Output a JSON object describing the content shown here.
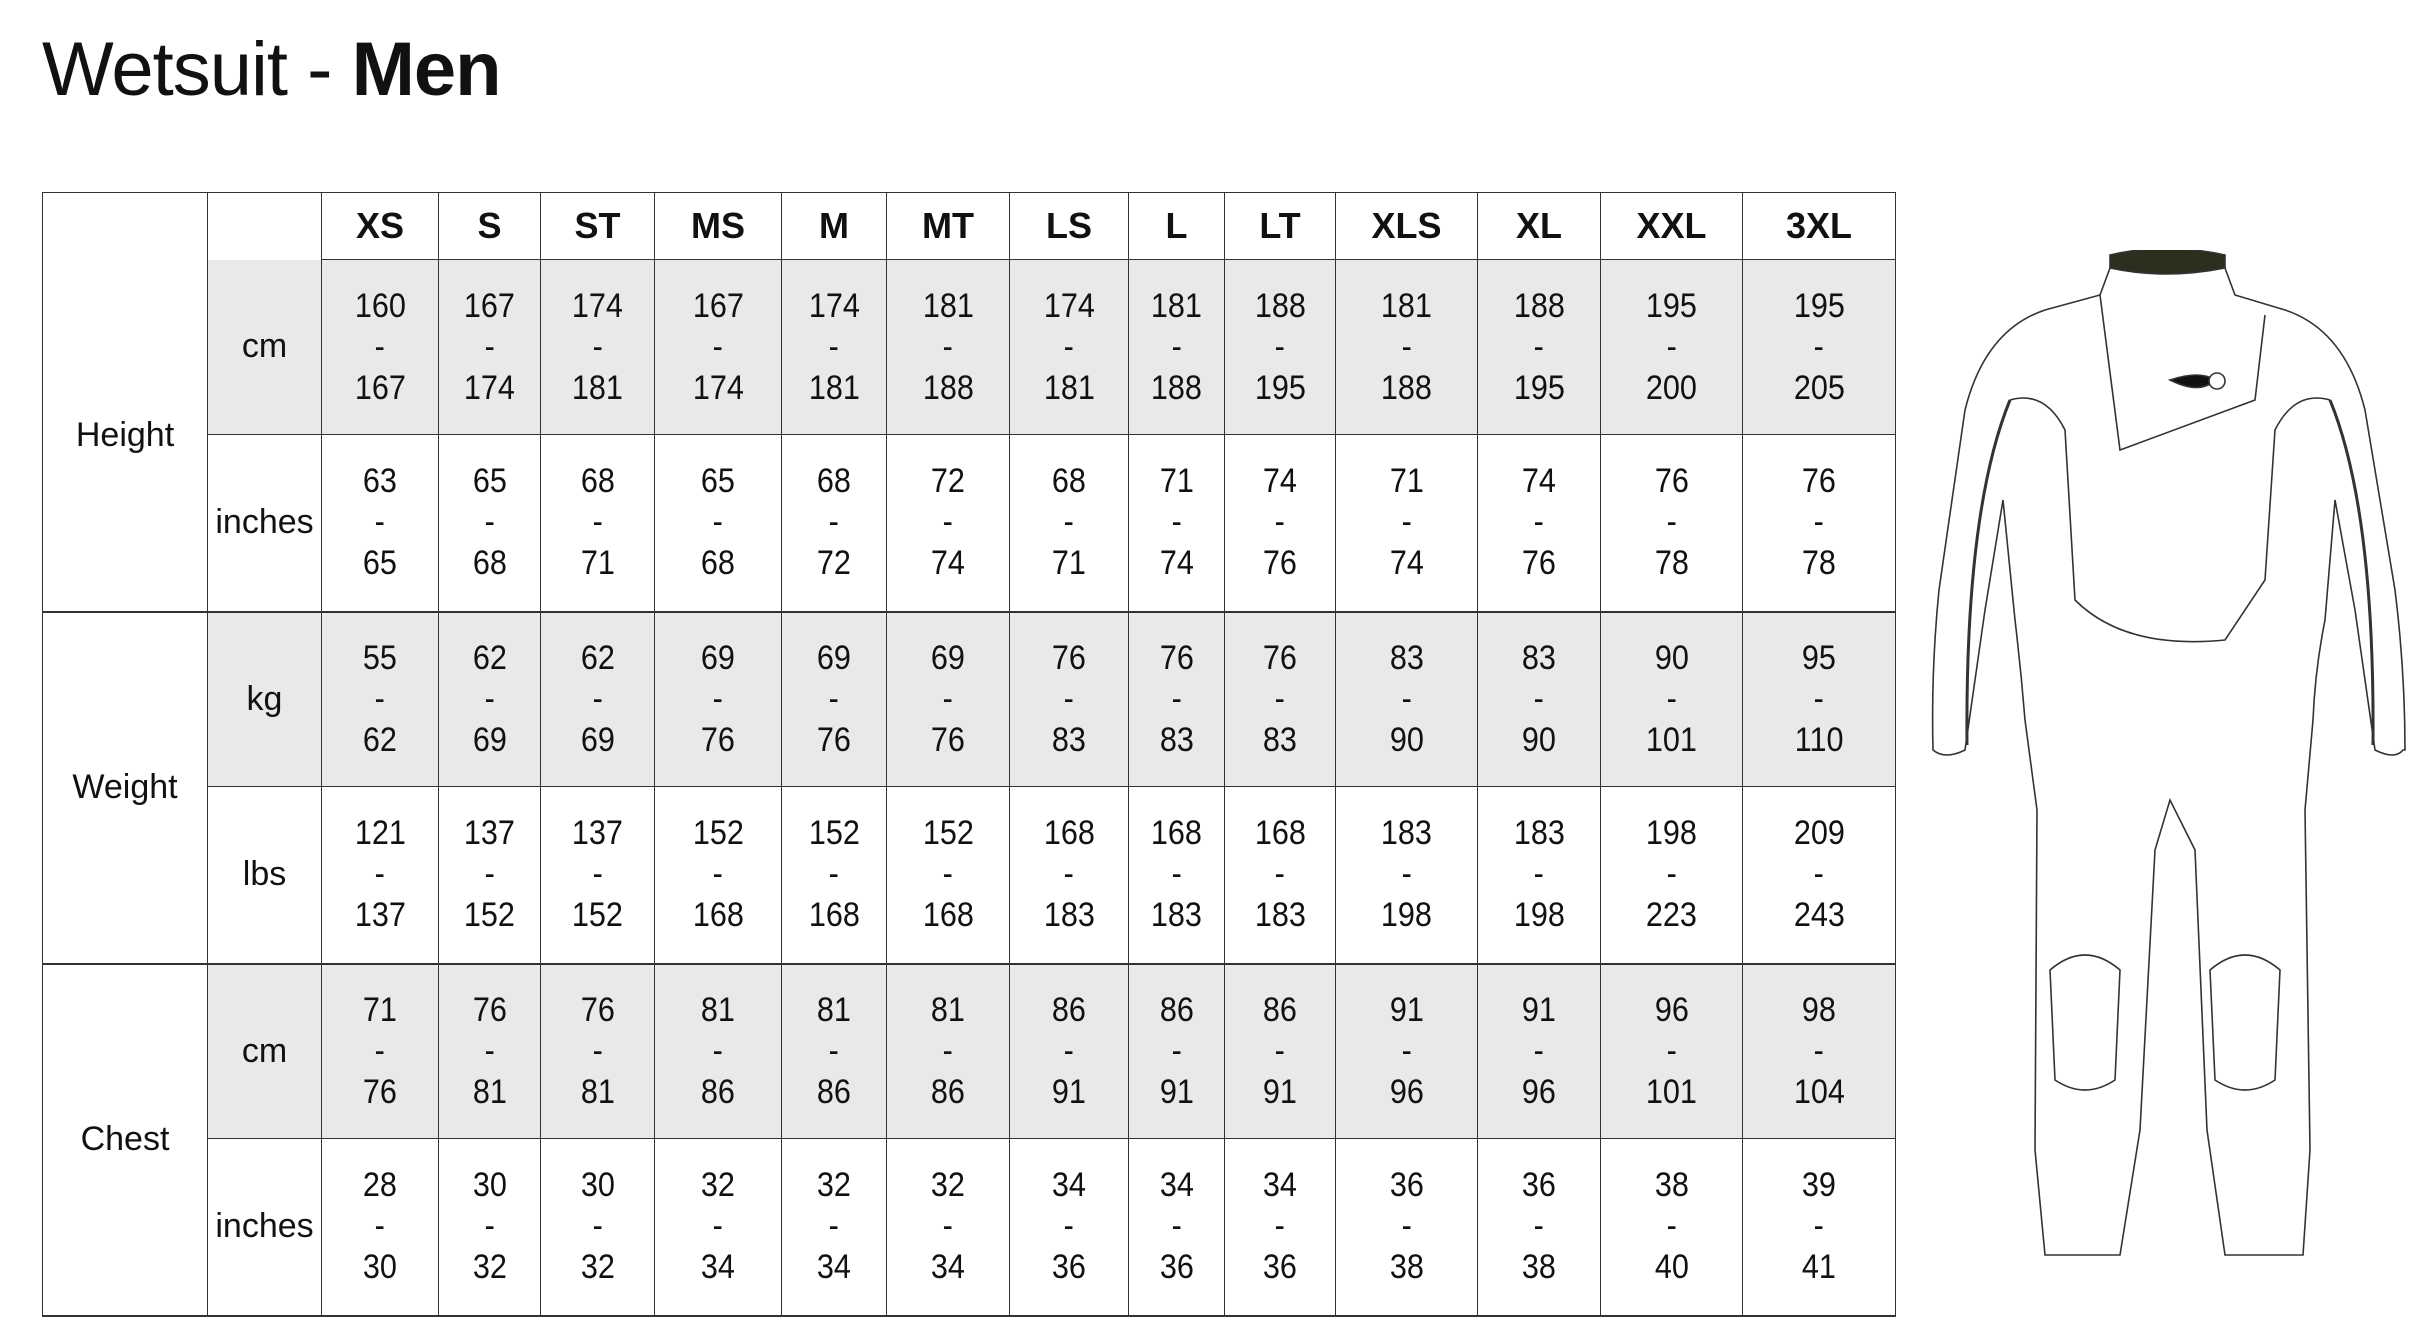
{
  "title": {
    "prefix": "Wetsuit - ",
    "bold": "Men"
  },
  "sizes": [
    "XS",
    "S",
    "ST",
    "MS",
    "M",
    "MT",
    "LS",
    "L",
    "LT",
    "XLS",
    "XL",
    "XXL",
    "3XL"
  ],
  "groups": [
    {
      "label": "Height",
      "rows": [
        {
          "unit": "cm",
          "values": [
            [
              "160",
              "167"
            ],
            [
              "167",
              "174"
            ],
            [
              "174",
              "181"
            ],
            [
              "167",
              "174"
            ],
            [
              "174",
              "181"
            ],
            [
              "181",
              "188"
            ],
            [
              "174",
              "181"
            ],
            [
              "181",
              "188"
            ],
            [
              "188",
              "195"
            ],
            [
              "181",
              "188"
            ],
            [
              "188",
              "195"
            ],
            [
              "195",
              "200"
            ],
            [
              "195",
              "205"
            ]
          ]
        },
        {
          "unit": "inches",
          "values": [
            [
              "63",
              "65"
            ],
            [
              "65",
              "68"
            ],
            [
              "68",
              "71"
            ],
            [
              "65",
              "68"
            ],
            [
              "68",
              "72"
            ],
            [
              "72",
              "74"
            ],
            [
              "68",
              "71"
            ],
            [
              "71",
              "74"
            ],
            [
              "74",
              "76"
            ],
            [
              "71",
              "74"
            ],
            [
              "74",
              "76"
            ],
            [
              "76",
              "78"
            ],
            [
              "76",
              "78"
            ]
          ]
        }
      ]
    },
    {
      "label": "Weight",
      "rows": [
        {
          "unit": "kg",
          "values": [
            [
              "55",
              "62"
            ],
            [
              "62",
              "69"
            ],
            [
              "62",
              "69"
            ],
            [
              "69",
              "76"
            ],
            [
              "69",
              "76"
            ],
            [
              "69",
              "76"
            ],
            [
              "76",
              "83"
            ],
            [
              "76",
              "83"
            ],
            [
              "76",
              "83"
            ],
            [
              "83",
              "90"
            ],
            [
              "83",
              "90"
            ],
            [
              "90",
              "101"
            ],
            [
              "95",
              "110"
            ]
          ]
        },
        {
          "unit": "lbs",
          "values": [
            [
              "121",
              "137"
            ],
            [
              "137",
              "152"
            ],
            [
              "137",
              "152"
            ],
            [
              "152",
              "168"
            ],
            [
              "152",
              "168"
            ],
            [
              "152",
              "168"
            ],
            [
              "168",
              "183"
            ],
            [
              "168",
              "183"
            ],
            [
              "168",
              "183"
            ],
            [
              "183",
              "198"
            ],
            [
              "183",
              "198"
            ],
            [
              "198",
              "223"
            ],
            [
              "209",
              "243"
            ]
          ]
        }
      ]
    },
    {
      "label": "Chest",
      "rows": [
        {
          "unit": "cm",
          "values": [
            [
              "71",
              "76"
            ],
            [
              "76",
              "81"
            ],
            [
              "76",
              "81"
            ],
            [
              "81",
              "86"
            ],
            [
              "81",
              "86"
            ],
            [
              "81",
              "86"
            ],
            [
              "86",
              "91"
            ],
            [
              "86",
              "91"
            ],
            [
              "86",
              "91"
            ],
            [
              "91",
              "96"
            ],
            [
              "91",
              "96"
            ],
            [
              "96",
              "101"
            ],
            [
              "98",
              "104"
            ]
          ]
        },
        {
          "unit": "inches",
          "values": [
            [
              "28",
              "30"
            ],
            [
              "30",
              "32"
            ],
            [
              "30",
              "32"
            ],
            [
              "32",
              "34"
            ],
            [
              "32",
              "34"
            ],
            [
              "32",
              "34"
            ],
            [
              "34",
              "36"
            ],
            [
              "34",
              "36"
            ],
            [
              "34",
              "36"
            ],
            [
              "36",
              "38"
            ],
            [
              "36",
              "38"
            ],
            [
              "38",
              "40"
            ],
            [
              "39",
              "41"
            ]
          ]
        }
      ]
    }
  ],
  "range_separator": "-",
  "colors": {
    "stripe": "#e9e9e9",
    "border": "#333333",
    "collar": "#2b2f1e"
  }
}
